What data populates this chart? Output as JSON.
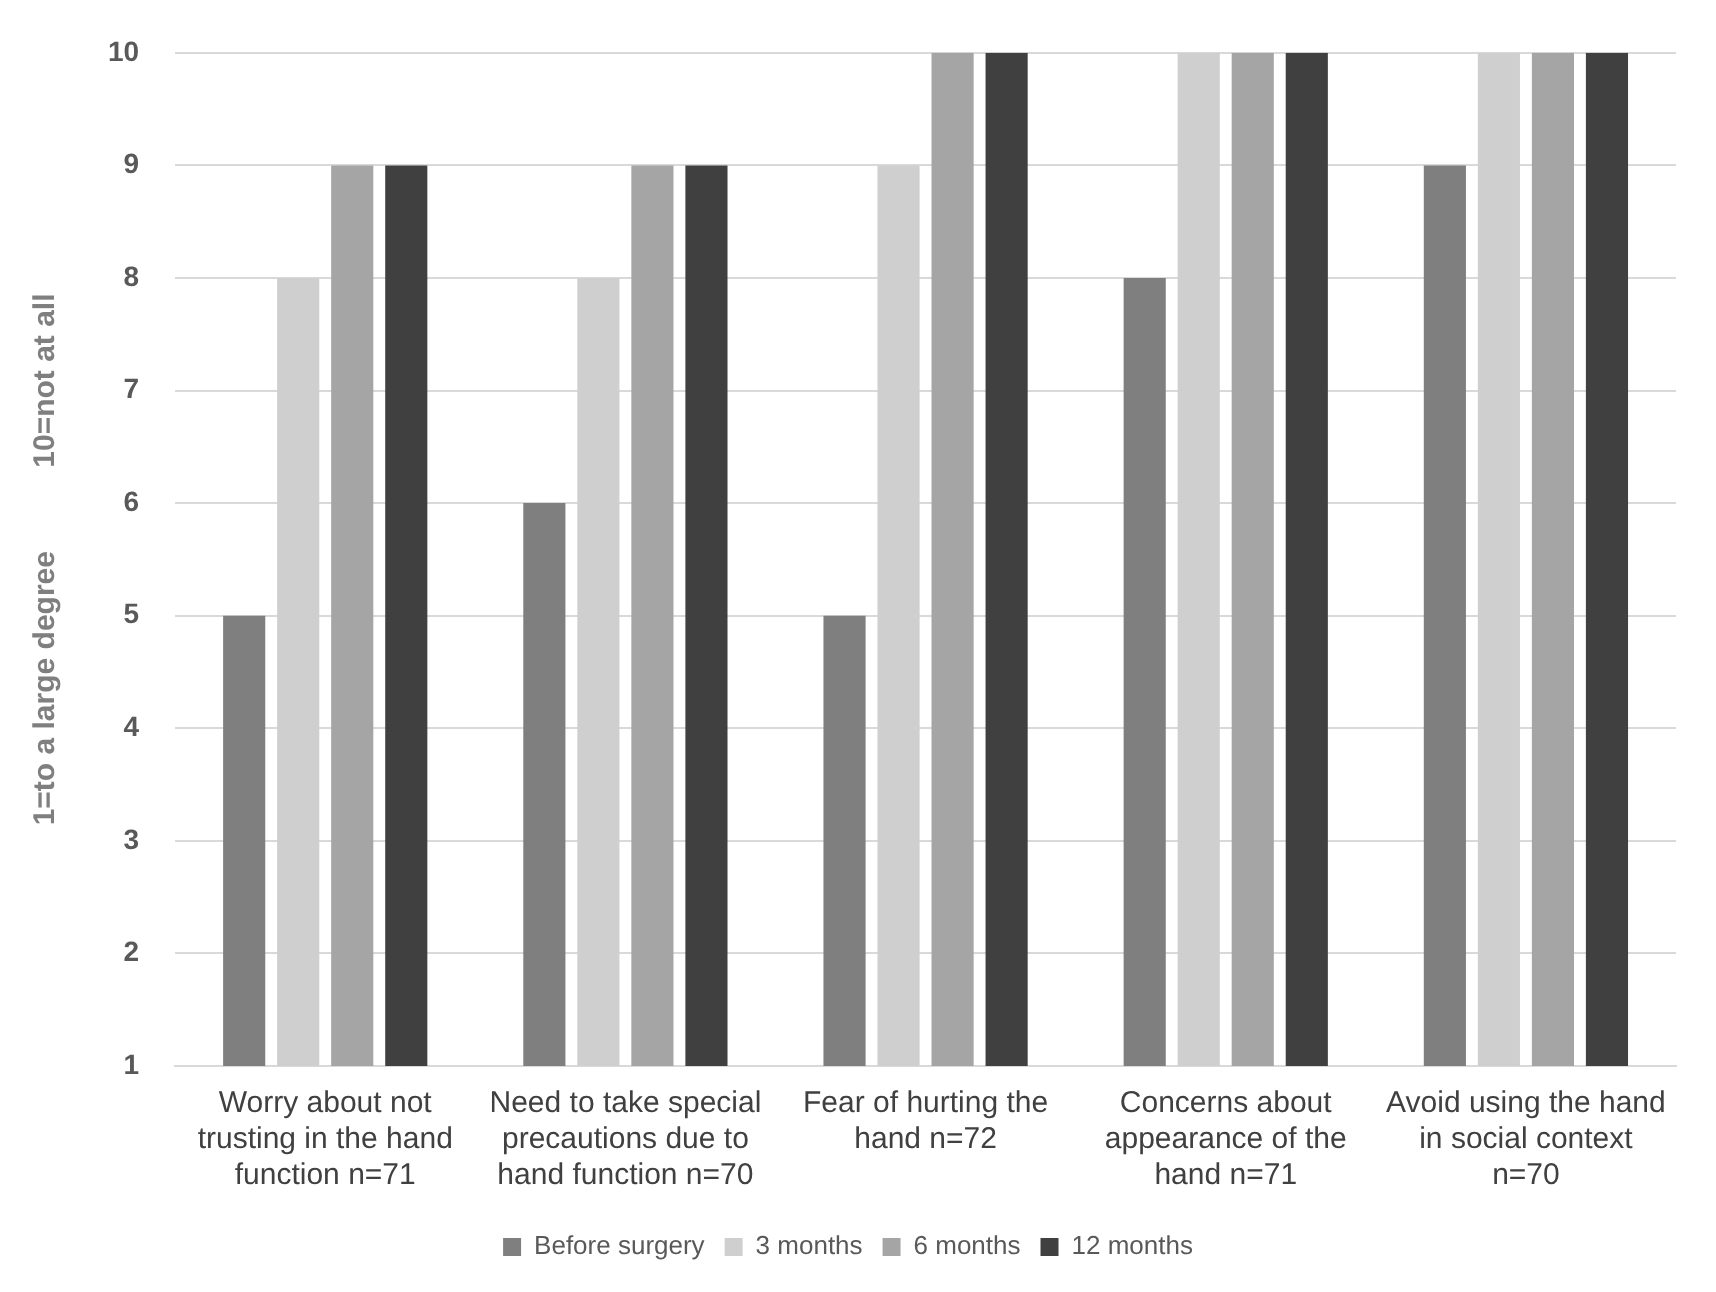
{
  "chart_data": {
    "type": "bar",
    "ylabel": "1=to a large degree          10=not at all",
    "categories": [
      "Worry about not trusting in the hand function n=71",
      "Need to take special precautions due to hand function n=70",
      "Fear of hurting the hand n=72",
      "Concerns about appearance of the hand n=71",
      "Avoid using the hand in social context n=70"
    ],
    "series": [
      {
        "name": "Before surgery",
        "color": "#7f7f7f",
        "values": [
          5,
          6,
          5,
          8,
          9
        ]
      },
      {
        "name": "3 months",
        "color": "#cfcfcf",
        "values": [
          8,
          8,
          9,
          10,
          10
        ]
      },
      {
        "name": "6 months",
        "color": "#a5a5a5",
        "values": [
          9,
          9,
          10,
          10,
          10
        ]
      },
      {
        "name": "12 months",
        "color": "#404040",
        "values": [
          9,
          9,
          10,
          10,
          10
        ]
      }
    ],
    "ylim": [
      1,
      10
    ],
    "yticks": [
      1,
      2,
      3,
      4,
      5,
      6,
      7,
      8,
      9,
      10
    ],
    "grid": "y",
    "legend": "bottom"
  }
}
